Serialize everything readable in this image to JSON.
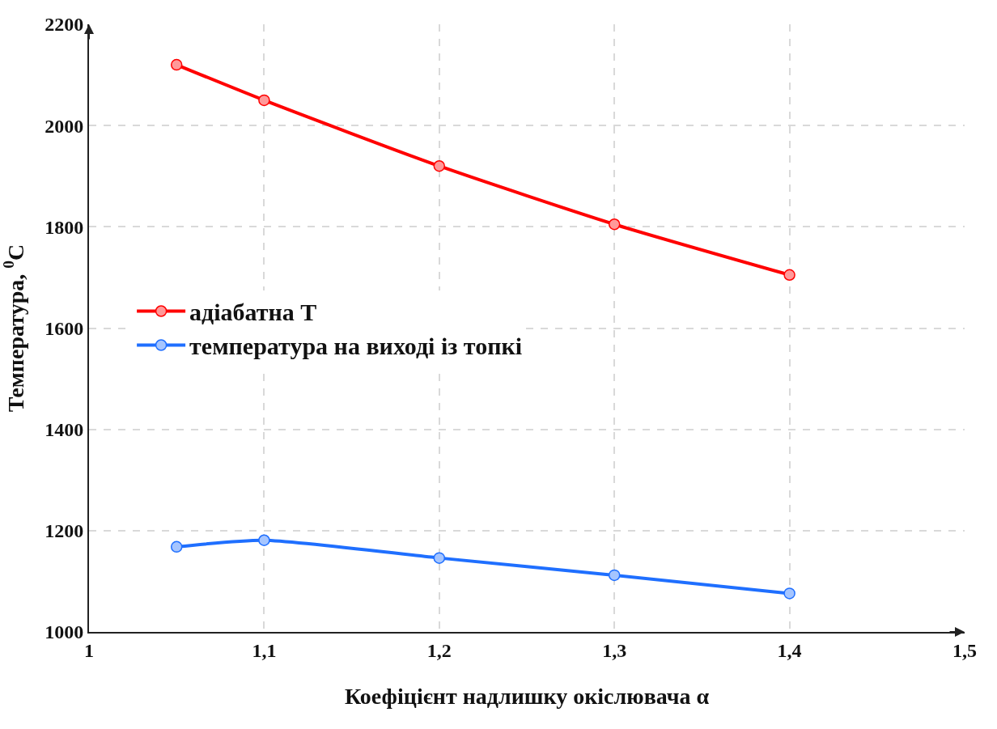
{
  "chart_data": {
    "type": "line",
    "xlabel": "Коефіцієнт надлишку окіслювача α",
    "ylabel": "Температура, $^{0}$C",
    "x": [
      1.05,
      1.1,
      1.2,
      1.3,
      1.4
    ],
    "series": [
      {
        "name": "адіабатна Т",
        "color": "#ff0000",
        "values": [
          2120,
          2050,
          1920,
          1805,
          1705
        ]
      },
      {
        "name": "температура на виході із топкі",
        "color": "#1f6fff",
        "values": [
          1168,
          1181,
          1146,
          1112,
          1076
        ]
      }
    ],
    "xlim": [
      1,
      1.5
    ],
    "xticks": [
      {
        "value": 1,
        "label": "1"
      },
      {
        "value": 1.1,
        "label": "1,1"
      },
      {
        "value": 1.2,
        "label": "1,2"
      },
      {
        "value": 1.3,
        "label": "1,3"
      },
      {
        "value": 1.4,
        "label": "1,4"
      },
      {
        "value": 1.5,
        "label": "1,5"
      }
    ],
    "ylim": [
      1000,
      2200
    ],
    "yticks": [
      1000,
      1200,
      1400,
      1600,
      1800,
      2000,
      2200
    ],
    "grid": true,
    "legend": "left",
    "marker": "circle",
    "line_style": "solid"
  }
}
